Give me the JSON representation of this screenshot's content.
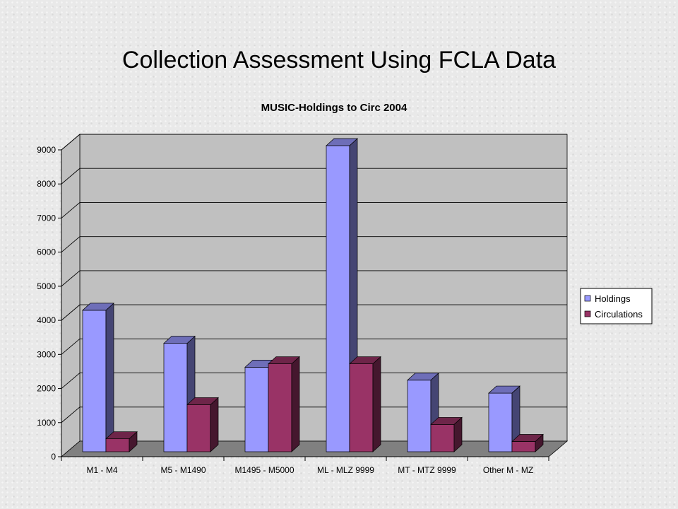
{
  "slide": {
    "title": "Collection Assessment Using FCLA Data"
  },
  "chart_data": {
    "type": "bar",
    "title": "MUSIC-Holdings to Circ 2004",
    "xlabel": "",
    "ylabel": "",
    "ylim": [
      0,
      9000
    ],
    "yticks": [
      0,
      1000,
      2000,
      3000,
      4000,
      5000,
      6000,
      7000,
      8000,
      9000
    ],
    "grid": true,
    "three_d": true,
    "legend_position": "right",
    "categories": [
      "M1 - M4",
      "M5 - M1490",
      "M1495 - M5000",
      "ML - MLZ 9999",
      "MT - MTZ 9999",
      "Other M - MZ"
    ],
    "series": [
      {
        "name": "Holdings",
        "color": "#9999ff",
        "values": [
          4150,
          3180,
          2480,
          8980,
          2100,
          1720
        ]
      },
      {
        "name": "Circulations",
        "color": "#993366",
        "values": [
          380,
          1380,
          2580,
          2580,
          800,
          300
        ]
      }
    ],
    "colors": {
      "wall": "#c0c0c0",
      "floor": "#808080"
    }
  }
}
